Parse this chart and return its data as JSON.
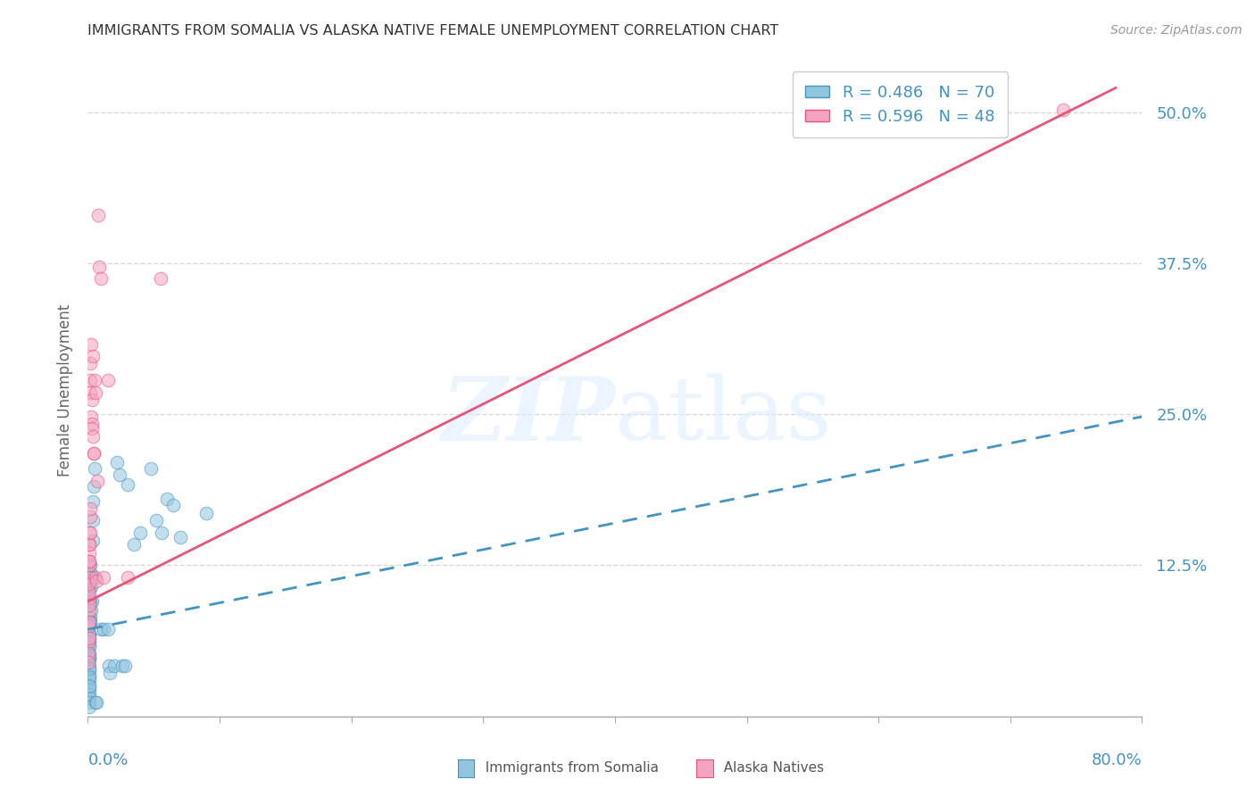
{
  "title": "IMMIGRANTS FROM SOMALIA VS ALASKA NATIVE FEMALE UNEMPLOYMENT CORRELATION CHART",
  "source": "Source: ZipAtlas.com",
  "ylabel": "Female Unemployment",
  "yticks": [
    0.0,
    0.125,
    0.25,
    0.375,
    0.5
  ],
  "ytick_labels": [
    "",
    "12.5%",
    "25.0%",
    "37.5%",
    "50.0%"
  ],
  "xlim": [
    0.0,
    0.8
  ],
  "ylim": [
    0.0,
    0.54
  ],
  "watermark_zip": "ZIP",
  "watermark_atlas": "atlas",
  "somalia_color": "#92c5de",
  "alaska_color": "#f4a3c0",
  "somalia_line_color": "#4393c3",
  "alaska_line_color": "#e8547a",
  "title_color": "#333333",
  "axis_label_color": "#4393c3",
  "grid_color": "#d9d9d9",
  "background_color": "#ffffff",
  "somalia_points": [
    [
      0.0008,
      0.108
    ],
    [
      0.0008,
      0.095
    ],
    [
      0.0008,
      0.075
    ],
    [
      0.0008,
      0.068
    ],
    [
      0.0008,
      0.062
    ],
    [
      0.0008,
      0.058
    ],
    [
      0.0008,
      0.052
    ],
    [
      0.0008,
      0.048
    ],
    [
      0.0008,
      0.042
    ],
    [
      0.0008,
      0.038
    ],
    [
      0.0008,
      0.034
    ],
    [
      0.0008,
      0.03
    ],
    [
      0.0008,
      0.026
    ],
    [
      0.0008,
      0.022
    ],
    [
      0.0008,
      0.018
    ],
    [
      0.0008,
      0.015
    ],
    [
      0.0008,
      0.012
    ],
    [
      0.0008,
      0.008
    ],
    [
      0.001,
      0.095
    ],
    [
      0.001,
      0.082
    ],
    [
      0.001,
      0.068
    ],
    [
      0.001,
      0.058
    ],
    [
      0.001,
      0.048
    ],
    [
      0.001,
      0.04
    ],
    [
      0.001,
      0.032
    ],
    [
      0.001,
      0.025
    ],
    [
      0.0012,
      0.118
    ],
    [
      0.0012,
      0.105
    ],
    [
      0.0012,
      0.092
    ],
    [
      0.0012,
      0.078
    ],
    [
      0.0012,
      0.065
    ],
    [
      0.0012,
      0.05
    ],
    [
      0.0015,
      0.125
    ],
    [
      0.0015,
      0.095
    ],
    [
      0.0015,
      0.082
    ],
    [
      0.0018,
      0.115
    ],
    [
      0.002,
      0.095
    ],
    [
      0.002,
      0.078
    ],
    [
      0.0022,
      0.108
    ],
    [
      0.0025,
      0.118
    ],
    [
      0.0025,
      0.088
    ],
    [
      0.0028,
      0.115
    ],
    [
      0.003,
      0.095
    ],
    [
      0.0035,
      0.178
    ],
    [
      0.0035,
      0.145
    ],
    [
      0.004,
      0.162
    ],
    [
      0.0045,
      0.19
    ],
    [
      0.005,
      0.205
    ],
    [
      0.006,
      0.012
    ],
    [
      0.0065,
      0.012
    ],
    [
      0.01,
      0.072
    ],
    [
      0.012,
      0.072
    ],
    [
      0.015,
      0.072
    ],
    [
      0.016,
      0.042
    ],
    [
      0.0165,
      0.036
    ],
    [
      0.02,
      0.042
    ],
    [
      0.022,
      0.21
    ],
    [
      0.024,
      0.2
    ],
    [
      0.026,
      0.042
    ],
    [
      0.028,
      0.042
    ],
    [
      0.03,
      0.192
    ],
    [
      0.035,
      0.142
    ],
    [
      0.04,
      0.152
    ],
    [
      0.048,
      0.205
    ],
    [
      0.052,
      0.162
    ],
    [
      0.056,
      0.152
    ],
    [
      0.06,
      0.18
    ],
    [
      0.065,
      0.175
    ],
    [
      0.07,
      0.148
    ],
    [
      0.09,
      0.168
    ]
  ],
  "alaska_points": [
    [
      0.0005,
      0.075
    ],
    [
      0.0005,
      0.062
    ],
    [
      0.0005,
      0.052
    ],
    [
      0.0005,
      0.045
    ],
    [
      0.0008,
      0.125
    ],
    [
      0.0008,
      0.112
    ],
    [
      0.0008,
      0.098
    ],
    [
      0.0008,
      0.088
    ],
    [
      0.0008,
      0.078
    ],
    [
      0.0008,
      0.065
    ],
    [
      0.001,
      0.142
    ],
    [
      0.001,
      0.135
    ],
    [
      0.001,
      0.128
    ],
    [
      0.001,
      0.115
    ],
    [
      0.001,
      0.102
    ],
    [
      0.001,
      0.092
    ],
    [
      0.0012,
      0.152
    ],
    [
      0.0012,
      0.142
    ],
    [
      0.0012,
      0.128
    ],
    [
      0.0012,
      0.11
    ],
    [
      0.0015,
      0.165
    ],
    [
      0.0015,
      0.152
    ],
    [
      0.0015,
      0.278
    ],
    [
      0.0018,
      0.268
    ],
    [
      0.002,
      0.292
    ],
    [
      0.002,
      0.172
    ],
    [
      0.0022,
      0.308
    ],
    [
      0.0022,
      0.248
    ],
    [
      0.0028,
      0.262
    ],
    [
      0.003,
      0.242
    ],
    [
      0.0032,
      0.238
    ],
    [
      0.0035,
      0.232
    ],
    [
      0.004,
      0.298
    ],
    [
      0.0042,
      0.218
    ],
    [
      0.0045,
      0.218
    ],
    [
      0.005,
      0.278
    ],
    [
      0.0055,
      0.268
    ],
    [
      0.006,
      0.115
    ],
    [
      0.0065,
      0.112
    ],
    [
      0.007,
      0.195
    ],
    [
      0.008,
      0.415
    ],
    [
      0.0085,
      0.372
    ],
    [
      0.01,
      0.362
    ],
    [
      0.012,
      0.115
    ],
    [
      0.015,
      0.278
    ],
    [
      0.03,
      0.115
    ],
    [
      0.055,
      0.362
    ],
    [
      0.74,
      0.502
    ]
  ],
  "somalia_line_x": [
    0.0,
    0.8
  ],
  "somalia_line_y": [
    0.072,
    0.248
  ],
  "alaska_line_x": [
    0.0,
    0.78
  ],
  "alaska_line_y": [
    0.095,
    0.52
  ]
}
